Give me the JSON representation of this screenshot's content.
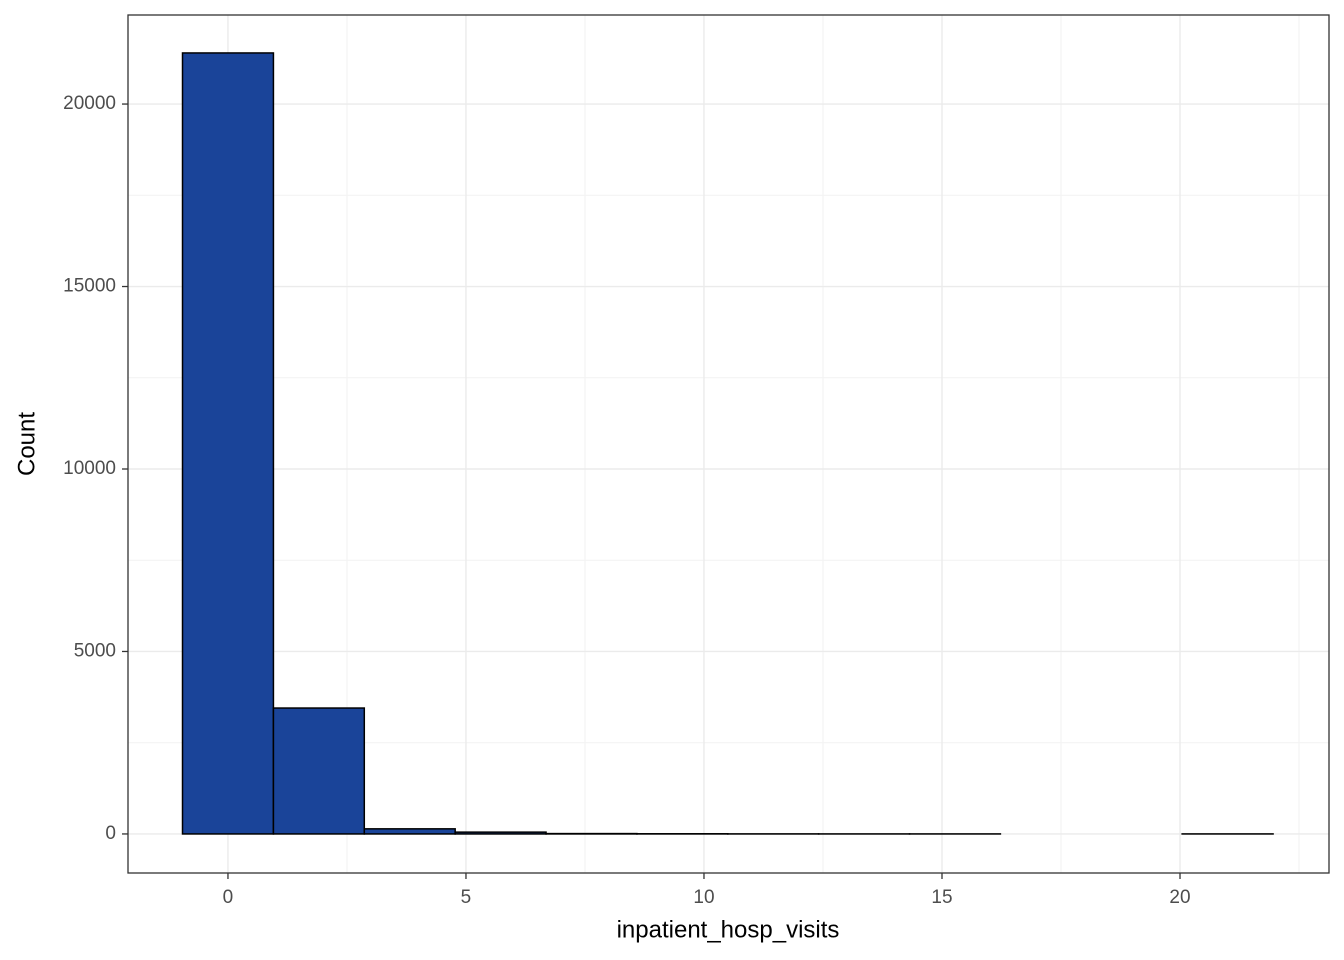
{
  "chart_data": {
    "type": "histogram",
    "x_label": "inpatient_hosp_visits",
    "y_label": "Count",
    "bins": [
      -0.955,
      0.955,
      2.864,
      4.773,
      6.682,
      8.591,
      10.5,
      12.409,
      14.318,
      16.227,
      18.136,
      20.045,
      21.955
    ],
    "values": [
      21400,
      3450,
      140,
      50,
      10,
      5,
      2,
      1,
      1,
      0,
      0,
      1
    ],
    "color": "#1a4499",
    "edge_color": "#000000",
    "xlim": [
      -2.1,
      23.13
    ],
    "xticks": [
      0,
      5,
      10,
      15,
      20
    ],
    "ylim": [
      -1070,
      22440
    ],
    "yticks": [
      0,
      5000,
      10000,
      15000,
      20000
    ],
    "grid": true,
    "minor_grid": true
  }
}
